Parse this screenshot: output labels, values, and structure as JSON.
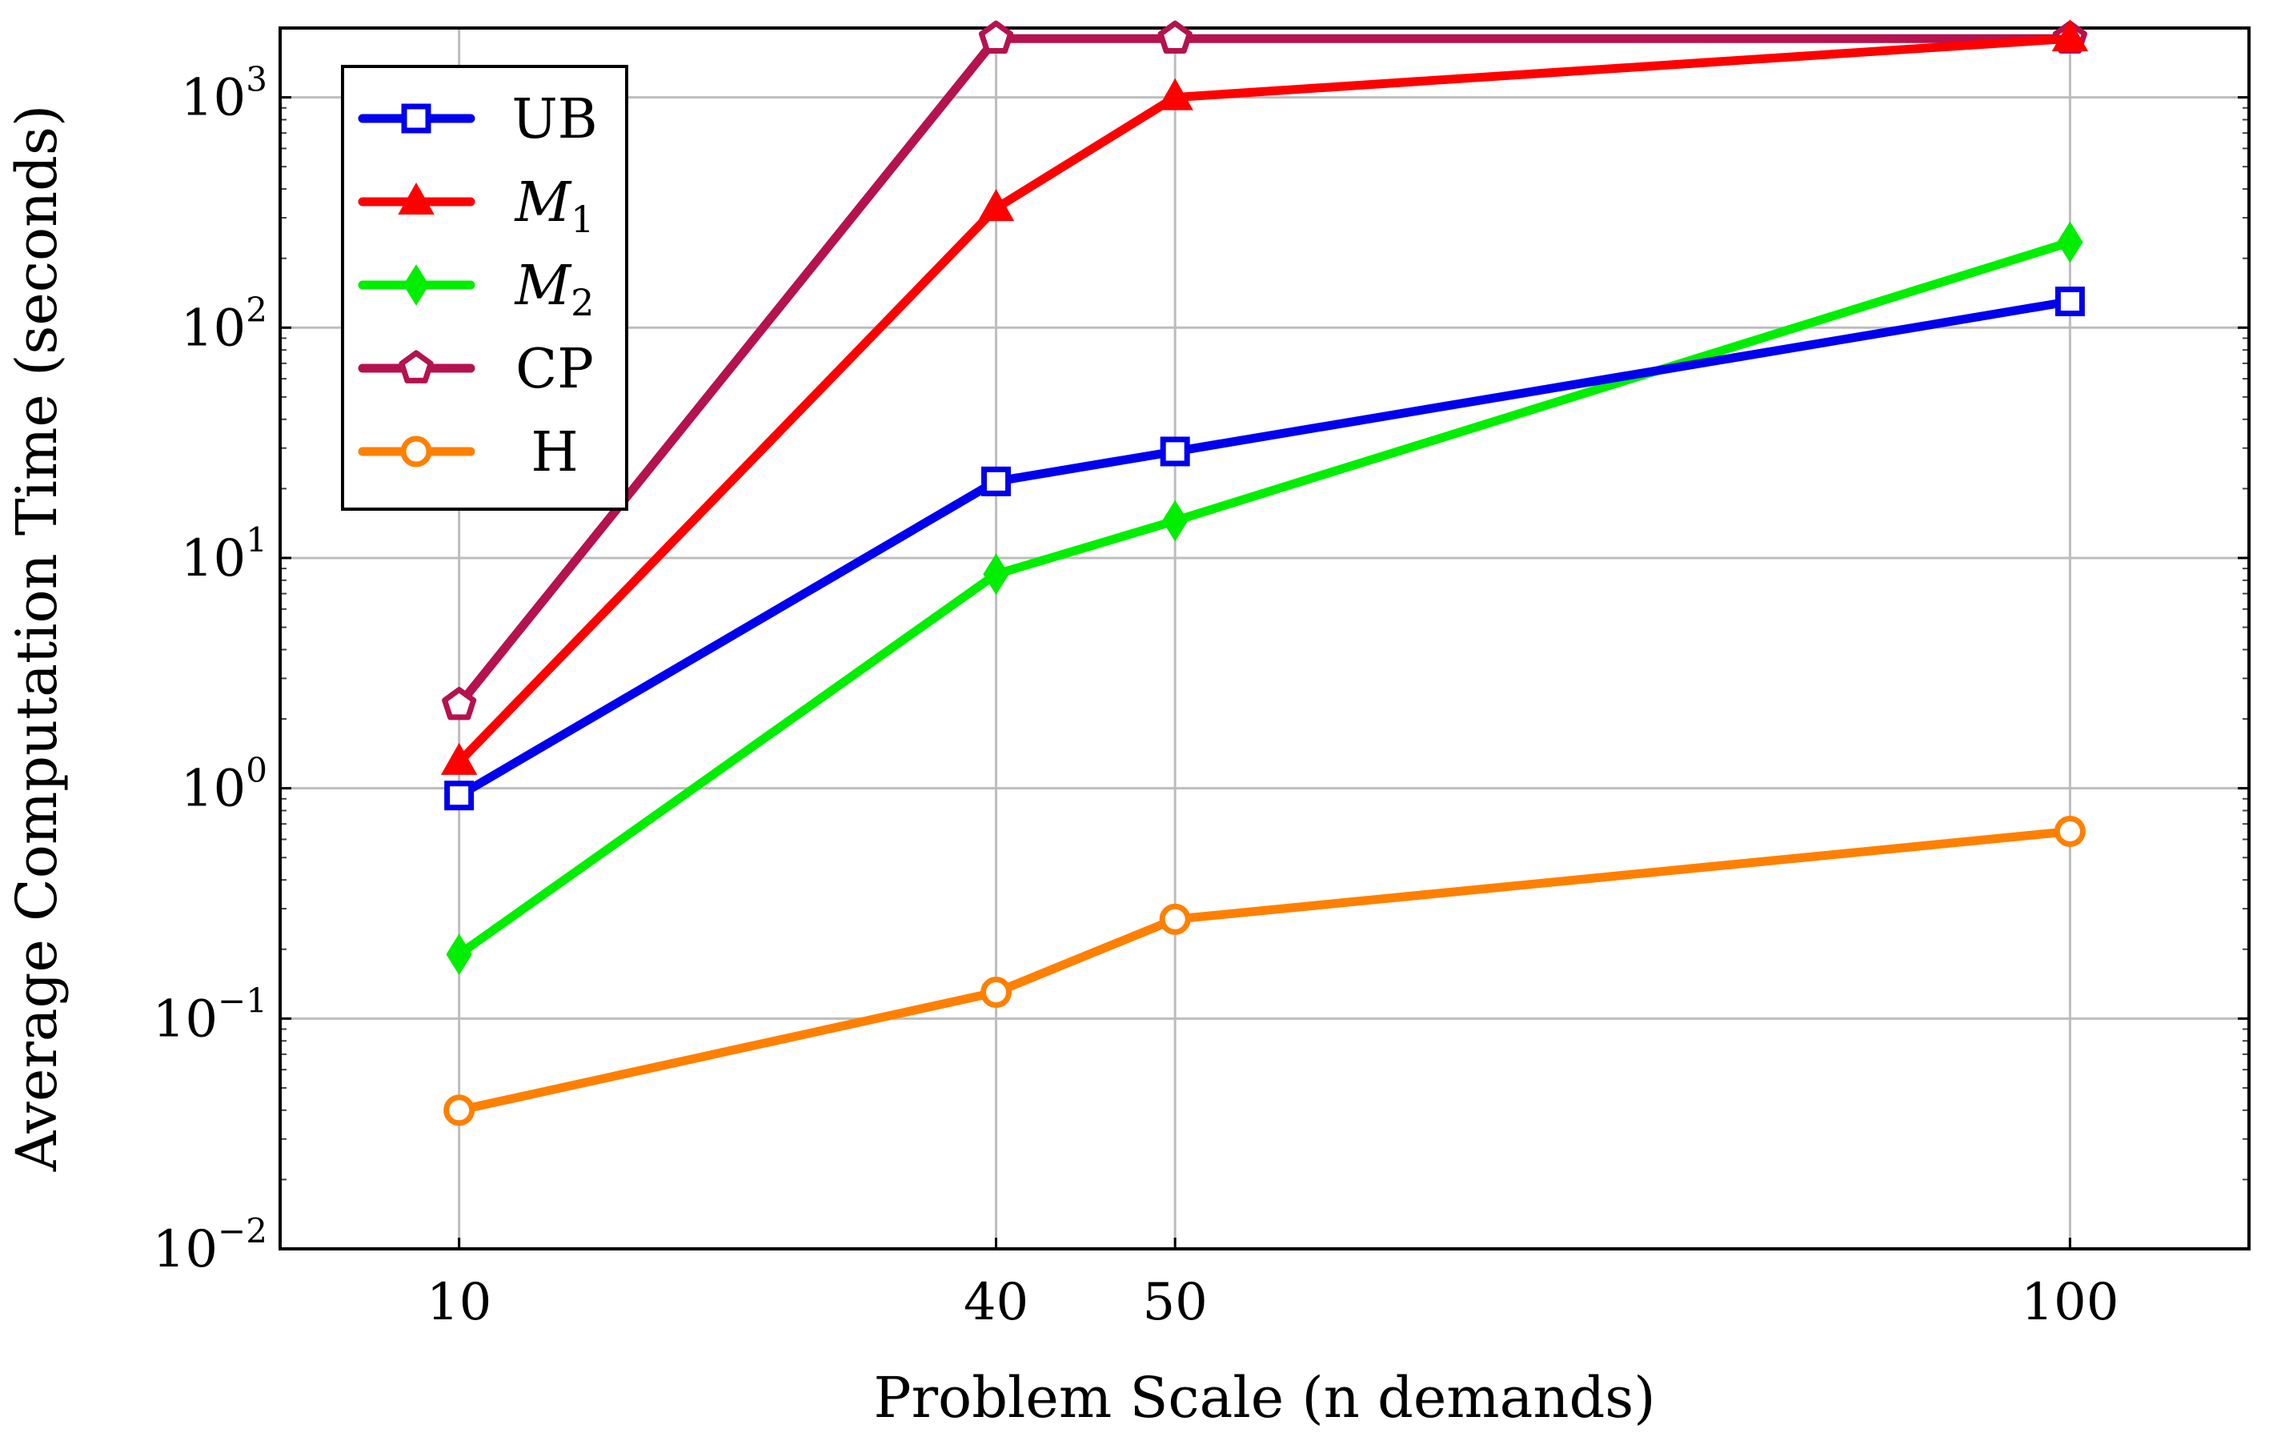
{
  "chart_data": {
    "type": "line",
    "title": "",
    "xlabel": "Problem Scale (n demands)",
    "ylabel": "Average Computation Time (seconds)",
    "x": [
      10,
      40,
      50,
      100
    ],
    "xlim": [
      0,
      110
    ],
    "ylim": [
      0.01,
      2000
    ],
    "yscale": "log",
    "grid": true,
    "legend_position": "top-left",
    "xticks": [
      "10",
      "40",
      "50",
      "100"
    ],
    "yticks": [
      {
        "base": "10",
        "exp": "−2",
        "value": 0.01
      },
      {
        "base": "10",
        "exp": "−1",
        "value": 0.1
      },
      {
        "base": "10",
        "exp": "0",
        "value": 1
      },
      {
        "base": "10",
        "exp": "1",
        "value": 10
      },
      {
        "base": "10",
        "exp": "2",
        "value": 100
      },
      {
        "base": "10",
        "exp": "3",
        "value": 1000
      }
    ],
    "series": [
      {
        "id": "cp",
        "name": "CP",
        "sub": "",
        "italic": false,
        "color": "#b5124f",
        "marker": "pentagon",
        "values": [
          2.3,
          1800,
          1800,
          1800
        ]
      },
      {
        "id": "m1",
        "name": "M",
        "sub": "1",
        "italic": true,
        "color": "#ff0000",
        "marker": "triangle",
        "values": [
          1.3,
          330,
          1000,
          1800
        ]
      },
      {
        "id": "m2",
        "name": "M",
        "sub": "2",
        "italic": true,
        "color": "#00ee00",
        "marker": "diamond",
        "values": [
          0.19,
          8.5,
          14.5,
          235
        ]
      },
      {
        "id": "ub",
        "name": "UB",
        "sub": "",
        "italic": false,
        "color": "#0000ee",
        "marker": "square",
        "values": [
          0.93,
          21.5,
          29,
          130
        ]
      },
      {
        "id": "h",
        "name": "H",
        "sub": "",
        "italic": false,
        "color": "#ff8000",
        "marker": "circle",
        "values": [
          0.04,
          0.13,
          0.27,
          0.65
        ]
      }
    ],
    "legend_order": [
      "ub",
      "m1",
      "m2",
      "cp",
      "h"
    ]
  }
}
